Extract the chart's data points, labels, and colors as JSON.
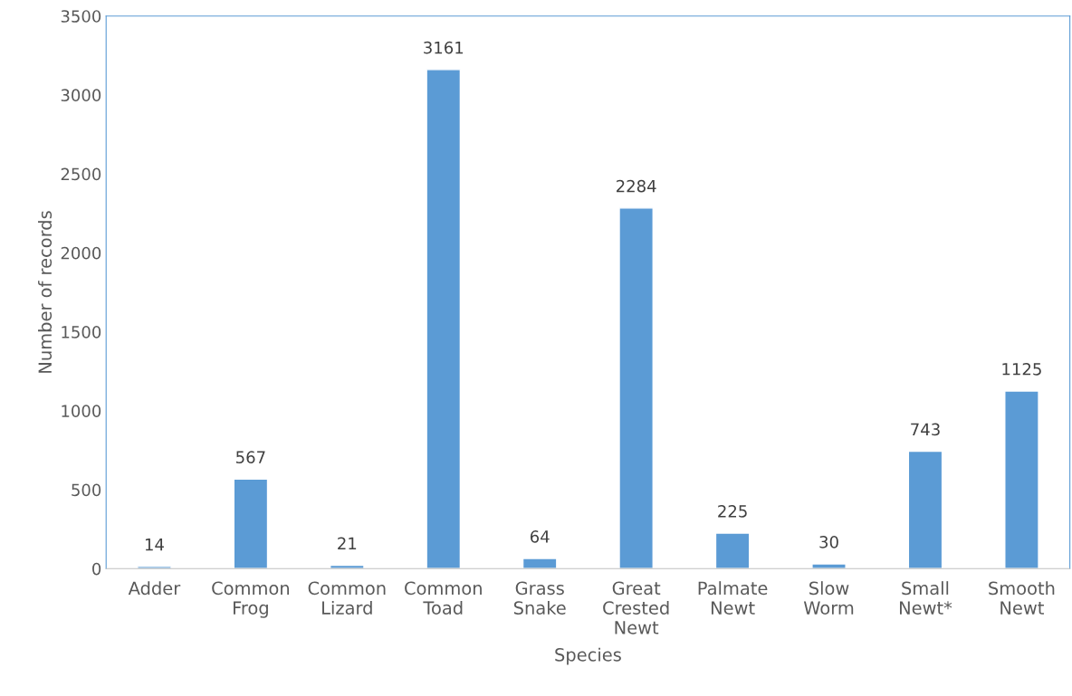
{
  "chart_data": {
    "type": "bar",
    "xlabel": "Species",
    "ylabel": "Number of records",
    "categories": [
      "Adder",
      "Common Frog",
      "Common Lizard",
      "Common Toad",
      "Grass Snake",
      "Great Crested Newt",
      "Palmate Newt",
      "Slow Worm",
      "Small Newt*",
      "Smooth Newt"
    ],
    "values": [
      14,
      567,
      21,
      3161,
      64,
      2284,
      225,
      30,
      743,
      1125
    ],
    "color": "#5b9bd5",
    "ylim": [
      0,
      3500
    ],
    "yticks": [
      0,
      500,
      1000,
      1500,
      2000,
      2500,
      3000,
      3500
    ],
    "data_labels": true,
    "grid": false
  }
}
